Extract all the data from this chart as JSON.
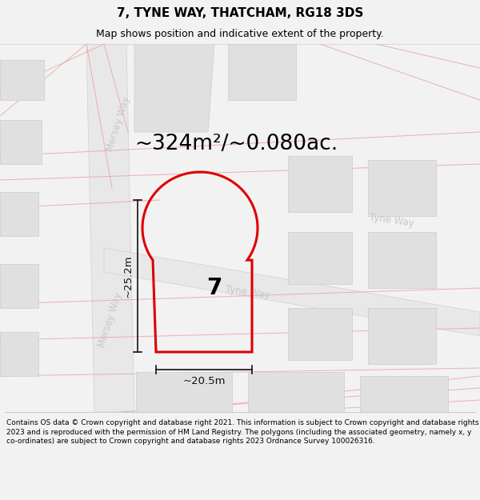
{
  "title": "7, TYNE WAY, THATCHAM, RG18 3DS",
  "subtitle": "Map shows position and indicative extent of the property.",
  "area_text": "~324m²/~0.080ac.",
  "dim_width": "~20.5m",
  "dim_height": "~25.2m",
  "number_label": "7",
  "footer_text": "Contains OS data © Crown copyright and database right 2021. This information is subject to Crown copyright and database rights 2023 and is reproduced with the permission of HM Land Registry. The polygons (including the associated geometry, namely x, y co-ordinates) are subject to Crown copyright and database rights 2023 Ordnance Survey 100026316.",
  "bg_color": "#f2f2f2",
  "map_bg": "#efefef",
  "building_color": "#e0e0e0",
  "building_stroke": "#cccccc",
  "road_fill": "#e8e8e8",
  "road_edge": "#d0d0d0",
  "plot_color": "#dd0000",
  "road_text_color": "#c8c8c8",
  "dim_color": "#111111",
  "title_fontsize": 11,
  "subtitle_fontsize": 9,
  "area_fontsize": 19,
  "number_fontsize": 20,
  "footer_fontsize": 6.5
}
